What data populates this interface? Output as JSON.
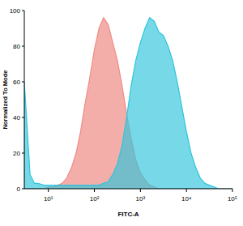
{
  "chart_data": {
    "type": "area",
    "x_label": "FITC-A",
    "y_label": "Normalized To Mode",
    "log": "x",
    "x": [
      3,
      4,
      5,
      6,
      8,
      10,
      13,
      16,
      20,
      25,
      32,
      40,
      50,
      63,
      79,
      100,
      126,
      158,
      200,
      251,
      316,
      398,
      501,
      631,
      794,
      1000,
      1259,
      1585,
      1995,
      2512,
      3162,
      3981,
      5012,
      6310,
      7943,
      10000,
      12589,
      15849,
      19953,
      25119,
      31623,
      39811,
      50119,
      63096,
      79433,
      100000
    ],
    "series": [
      {
        "color": "#f08c86",
        "values": [
          0,
          0,
          0,
          0,
          0,
          1,
          1,
          2,
          3,
          6,
          12,
          20,
          32,
          48,
          62,
          78,
          90,
          96,
          92,
          82,
          72,
          58,
          42,
          28,
          16,
          9,
          5,
          2,
          1,
          0,
          0,
          0,
          0,
          0,
          0,
          0,
          0,
          0,
          0,
          0,
          0,
          0,
          0,
          0,
          0,
          0
        ]
      },
      {
        "color": "#2ec4dc",
        "values": [
          60,
          8,
          3,
          3,
          2,
          2,
          2,
          2,
          2,
          2,
          2,
          2,
          2,
          2,
          2,
          2,
          2,
          3,
          4,
          8,
          14,
          24,
          40,
          58,
          72,
          82,
          90,
          96,
          94,
          88,
          86,
          80,
          72,
          60,
          46,
          32,
          20,
          12,
          6,
          3,
          2,
          1,
          0,
          0,
          0,
          0
        ]
      }
    ],
    "xlim": [
      3,
      100000
    ],
    "xticks": [
      {
        "value": 10,
        "label": "10¹"
      },
      {
        "value": 100,
        "label": "10²"
      },
      {
        "value": 1000,
        "label": "10³"
      },
      {
        "value": 10000,
        "label": "10⁴"
      },
      {
        "value": 100000,
        "label": "10⁵"
      }
    ],
    "ylim": [
      0,
      100
    ],
    "yticks": [
      0,
      20,
      40,
      60,
      80,
      100
    ]
  }
}
